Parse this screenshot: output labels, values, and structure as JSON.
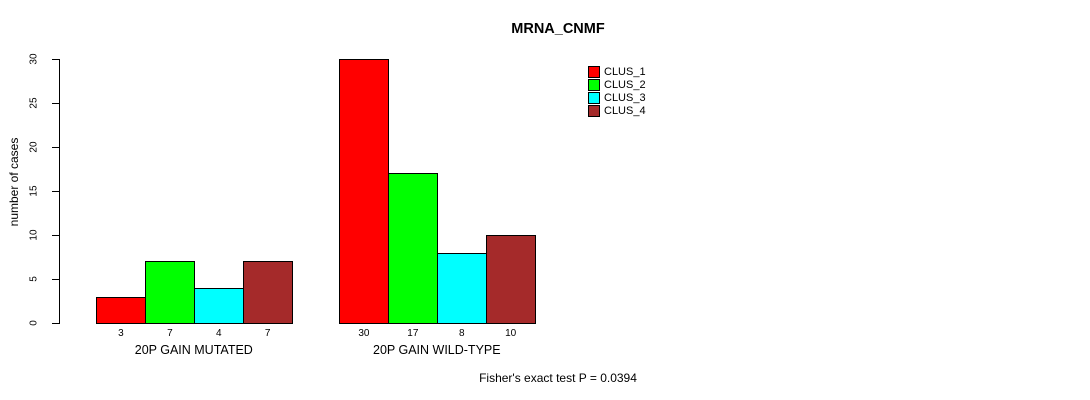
{
  "chart_data": {
    "type": "bar",
    "title": "MRNA_CNMF",
    "ylabel": "number of cases",
    "xlabel": "",
    "footer": "Fisher's exact test P = 0.0394",
    "ylim": [
      0,
      30
    ],
    "yticks": [
      0,
      5,
      10,
      15,
      20,
      25,
      30
    ],
    "grid": false,
    "legend_position": "top-right",
    "bar_value_labels_shown": true,
    "categories": [
      "20P GAIN MUTATED",
      "20P GAIN WILD-TYPE"
    ],
    "series": [
      {
        "name": "CLUS_1",
        "color": "#ff0000",
        "values": [
          3,
          30
        ]
      },
      {
        "name": "CLUS_2",
        "color": "#00ff00",
        "values": [
          7,
          17
        ]
      },
      {
        "name": "CLUS_3",
        "color": "#00ffff",
        "values": [
          4,
          8
        ]
      },
      {
        "name": "CLUS_4",
        "color": "#a52a2a",
        "values": [
          7,
          10
        ]
      }
    ],
    "colors": {
      "background": "#ffffff",
      "axis": "#000000",
      "text": "#000000"
    }
  }
}
